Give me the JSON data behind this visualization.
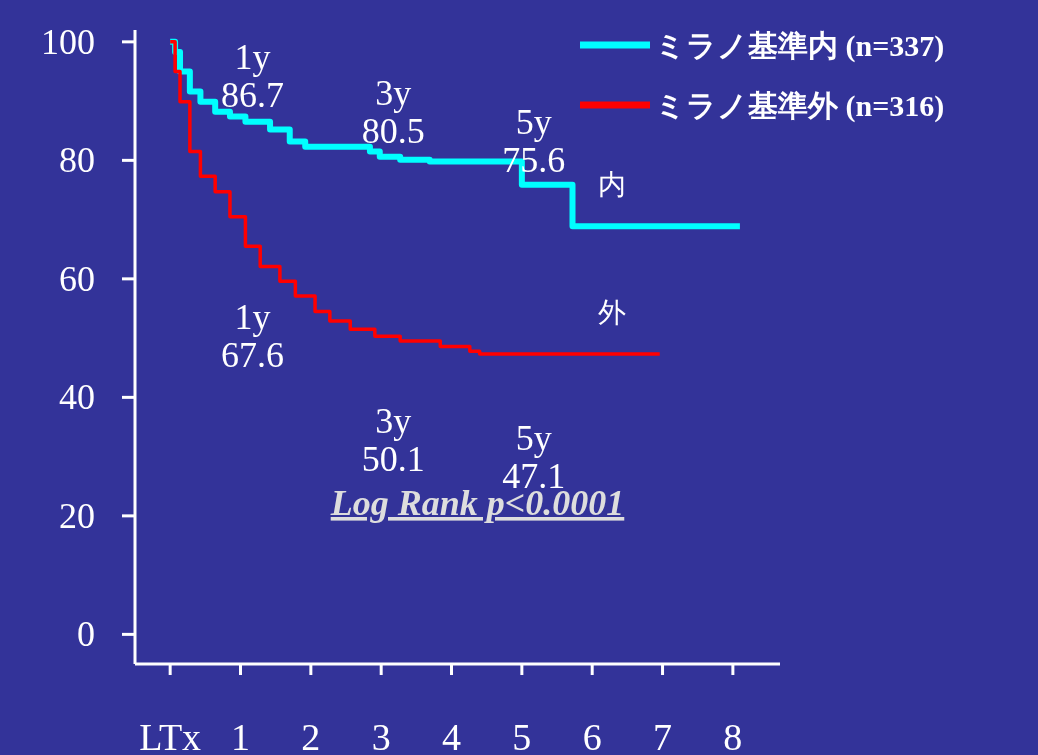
{
  "chart_data": {
    "type": "step",
    "xlim": [
      -0.5,
      8.67
    ],
    "ylim": [
      -5,
      102
    ],
    "xticks": [
      {
        "value": 0,
        "label": "LTx"
      },
      1,
      2,
      3,
      4,
      5,
      6,
      7,
      8
    ],
    "yticks": [
      0,
      20,
      40,
      60,
      80,
      100
    ],
    "legend": "top right",
    "grid": false,
    "series": [
      {
        "name": "ミラノ基準内 (n=337)",
        "color": "#00ffff",
        "x": [
          0,
          0.07,
          0.14,
          0.28,
          0.43,
          0.64,
          0.85,
          1.07,
          1.42,
          1.7,
          1.92,
          2.41,
          2.84,
          2.98,
          3.27,
          3.69,
          4.97,
          5.0,
          5.68,
          5.72,
          8.1
        ],
        "values": [
          100,
          98.3,
          95,
          91.6,
          89.9,
          88.2,
          87.4,
          86.5,
          85.2,
          83.2,
          82.3,
          82.3,
          81.5,
          80.6,
          80.1,
          79.8,
          79.8,
          75.9,
          75.9,
          68.9,
          68.9
        ]
      },
      {
        "name": "ミラノ基準外 (n=316)",
        "color": "#ff0000",
        "x": [
          0,
          0.07,
          0.14,
          0.28,
          0.43,
          0.64,
          0.85,
          1.07,
          1.28,
          1.56,
          1.78,
          2.06,
          2.27,
          2.56,
          2.91,
          3.27,
          3.84,
          4.26,
          4.4,
          6.96
        ],
        "values": [
          100,
          95,
          89.9,
          81.5,
          77.3,
          74.7,
          70.5,
          65.5,
          62.1,
          59.6,
          57.1,
          54.5,
          52.9,
          51.5,
          50.3,
          49.5,
          48.6,
          47.8,
          47.3,
          47.3
        ]
      }
    ],
    "annotations": [
      {
        "text": "1y\n86.7",
        "x": 1,
        "y": 86.7
      },
      {
        "text": "3y\n80.5",
        "x": 3,
        "y": 80.5
      },
      {
        "text": "5y\n75.6",
        "x": 5,
        "y": 75.6
      },
      {
        "text": "1y\n67.6",
        "x": 1,
        "y": 67.6
      },
      {
        "text": "3y\n50.1",
        "x": 3,
        "y": 50.1
      },
      {
        "text": "5y\n47.1",
        "x": 5,
        "y": 47.1
      },
      "内",
      "外",
      "Log Rank p<0.0001"
    ]
  }
}
